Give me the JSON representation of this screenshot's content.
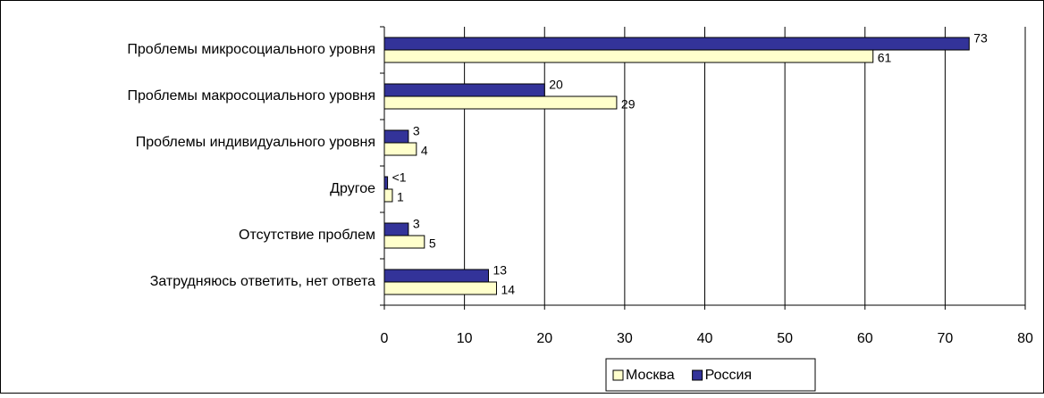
{
  "chart_data": {
    "type": "hbar",
    "categories": [
      "Проблемы микросоциального уровня",
      "Проблемы макросоциального уровня",
      "Проблемы индивидуального уровня",
      "Другое",
      "Отсутствие проблем",
      "Затрудняюсь ответить, нет ответа"
    ],
    "series": [
      {
        "name": "Москва",
        "color": "#ffffcc",
        "values": [
          61,
          29,
          4,
          1,
          5,
          14
        ]
      },
      {
        "name": "Россия",
        "color": "#333399",
        "values": [
          73,
          20,
          3,
          0.4,
          3,
          13
        ],
        "value_labels": [
          "73",
          "20",
          "3",
          "<1",
          "3",
          "13"
        ]
      }
    ],
    "xlim": [
      0,
      80
    ],
    "xticks": [
      0,
      10,
      20,
      30,
      40,
      50,
      60,
      70,
      80
    ],
    "grid": true,
    "legend": "bottom"
  }
}
